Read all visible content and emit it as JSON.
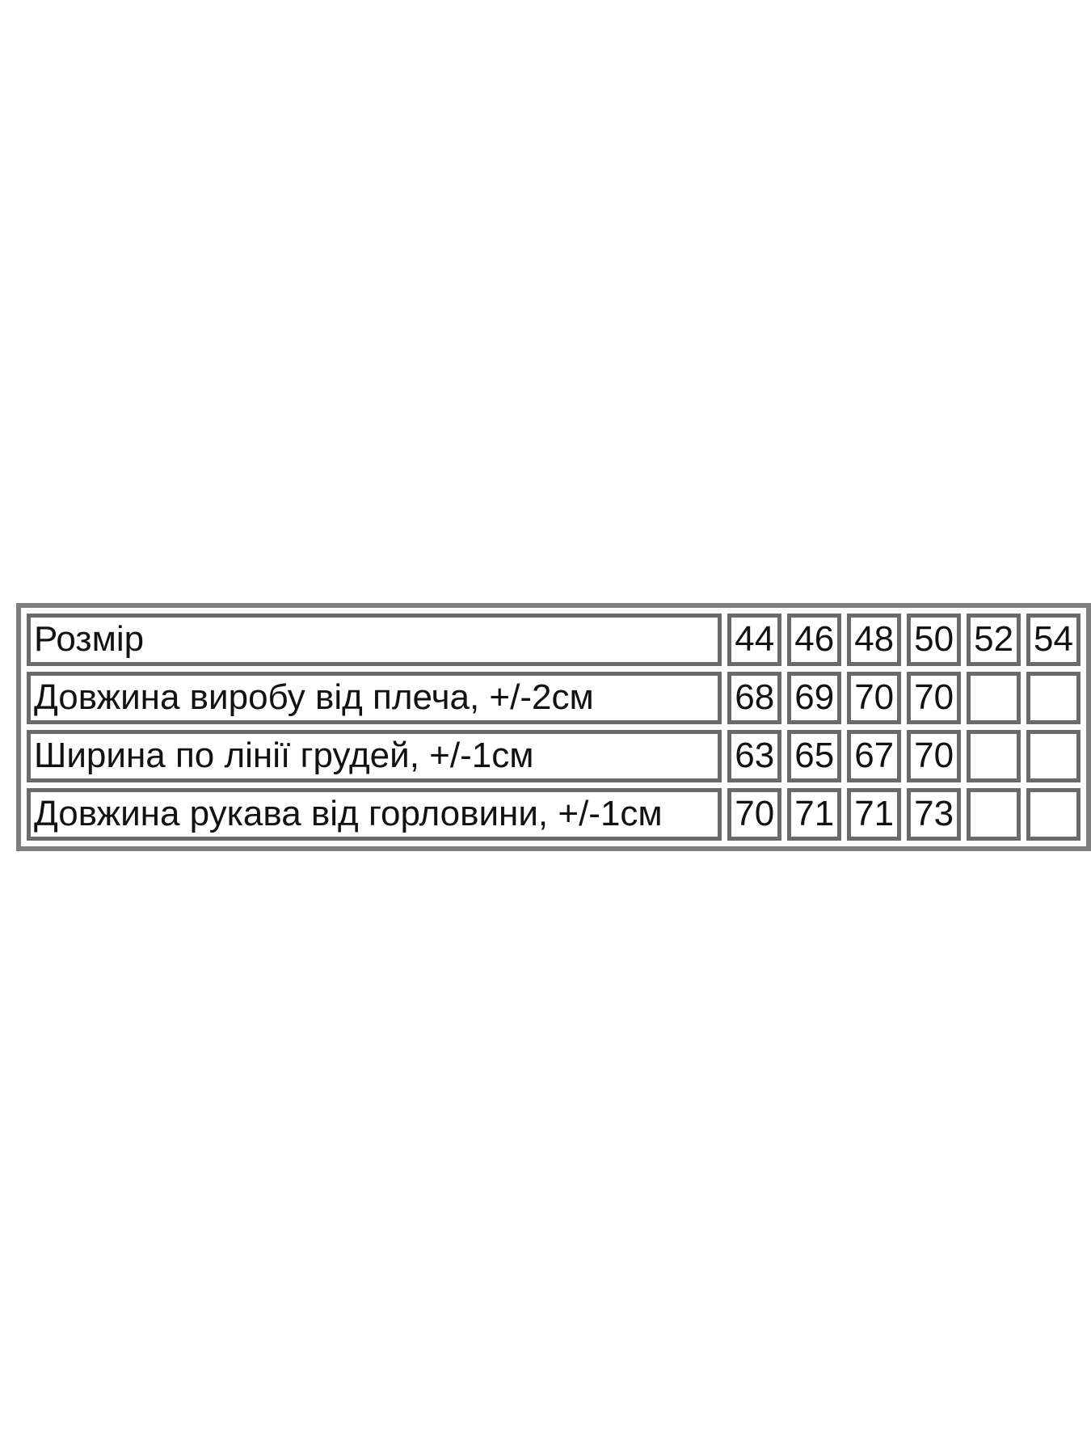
{
  "chart_data": {
    "type": "table",
    "header": [
      "Розмір",
      "44",
      "46",
      "48",
      "50",
      "52",
      "54"
    ],
    "rows": [
      [
        "Довжина виробу від плеча, +/-2см",
        "68",
        "69",
        "70",
        "70",
        "",
        ""
      ],
      [
        "Ширина по лінії грудей, +/-1см",
        "63",
        "65",
        "67",
        "70",
        "",
        ""
      ],
      [
        "Довжина рукава від горловини, +/-1см",
        "70",
        "71",
        "71",
        "73",
        "",
        ""
      ]
    ],
    "layout": {
      "grid": "on",
      "empty_cells_shown": true
    }
  },
  "colors": {
    "table_border": "#7e7e7e",
    "cell_border": "#6a6a6a",
    "text": "#121212",
    "background": "#ffffff"
  }
}
